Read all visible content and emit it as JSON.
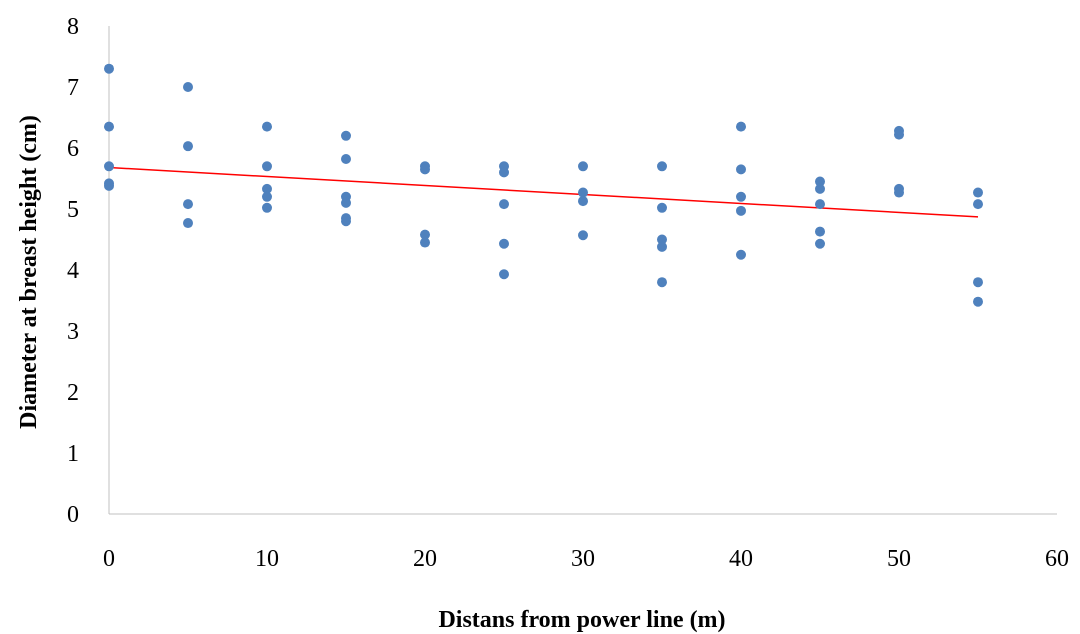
{
  "chart_data": {
    "type": "scatter",
    "title": "",
    "xlabel": "Distans from power line (m)",
    "ylabel": "Diameter at breast height (cm)",
    "xlim": [
      0,
      60
    ],
    "ylim": [
      0,
      8
    ],
    "x_ticks": [
      0,
      10,
      20,
      30,
      40,
      50,
      60
    ],
    "y_ticks": [
      0,
      1,
      2,
      3,
      4,
      5,
      6,
      7,
      8
    ],
    "grid": false,
    "legend": "none",
    "colors": {
      "points": "#4f81bd",
      "trendline": "#ff0000",
      "axis": "#c0c0c0"
    },
    "series": [
      {
        "points": [
          [
            0,
            7.3
          ],
          [
            0,
            6.35
          ],
          [
            0,
            5.7
          ],
          [
            0,
            5.42
          ],
          [
            0,
            5.38
          ],
          [
            5,
            7.0
          ],
          [
            5,
            6.03
          ],
          [
            5,
            5.08
          ],
          [
            5,
            4.77
          ],
          [
            10,
            6.35
          ],
          [
            10,
            5.7
          ],
          [
            10,
            5.33
          ],
          [
            10,
            5.2
          ],
          [
            10,
            5.02
          ],
          [
            15,
            6.2
          ],
          [
            15,
            5.82
          ],
          [
            15,
            5.2
          ],
          [
            15,
            5.1
          ],
          [
            15,
            4.85
          ],
          [
            15,
            4.8
          ],
          [
            20,
            5.7
          ],
          [
            20,
            5.65
          ],
          [
            20,
            4.58
          ],
          [
            20,
            4.45
          ],
          [
            25,
            5.7
          ],
          [
            25,
            5.6
          ],
          [
            25,
            5.08
          ],
          [
            25,
            4.43
          ],
          [
            25,
            3.93
          ],
          [
            30,
            5.7
          ],
          [
            30,
            5.27
          ],
          [
            30,
            5.13
          ],
          [
            30,
            4.57
          ],
          [
            35,
            5.7
          ],
          [
            35,
            5.02
          ],
          [
            35,
            4.5
          ],
          [
            35,
            4.38
          ],
          [
            35,
            3.8
          ],
          [
            40,
            6.35
          ],
          [
            40,
            5.65
          ],
          [
            40,
            5.2
          ],
          [
            40,
            4.97
          ],
          [
            40,
            4.25
          ],
          [
            45,
            5.45
          ],
          [
            45,
            5.33
          ],
          [
            45,
            5.08
          ],
          [
            45,
            4.63
          ],
          [
            45,
            4.43
          ],
          [
            50,
            6.28
          ],
          [
            50,
            6.22
          ],
          [
            50,
            5.33
          ],
          [
            50,
            5.27
          ],
          [
            55,
            5.27
          ],
          [
            55,
            5.08
          ],
          [
            55,
            3.8
          ],
          [
            55,
            3.48
          ]
        ]
      }
    ],
    "trendline": {
      "x": [
        0,
        55
      ],
      "y": [
        5.68,
        4.87
      ]
    }
  }
}
